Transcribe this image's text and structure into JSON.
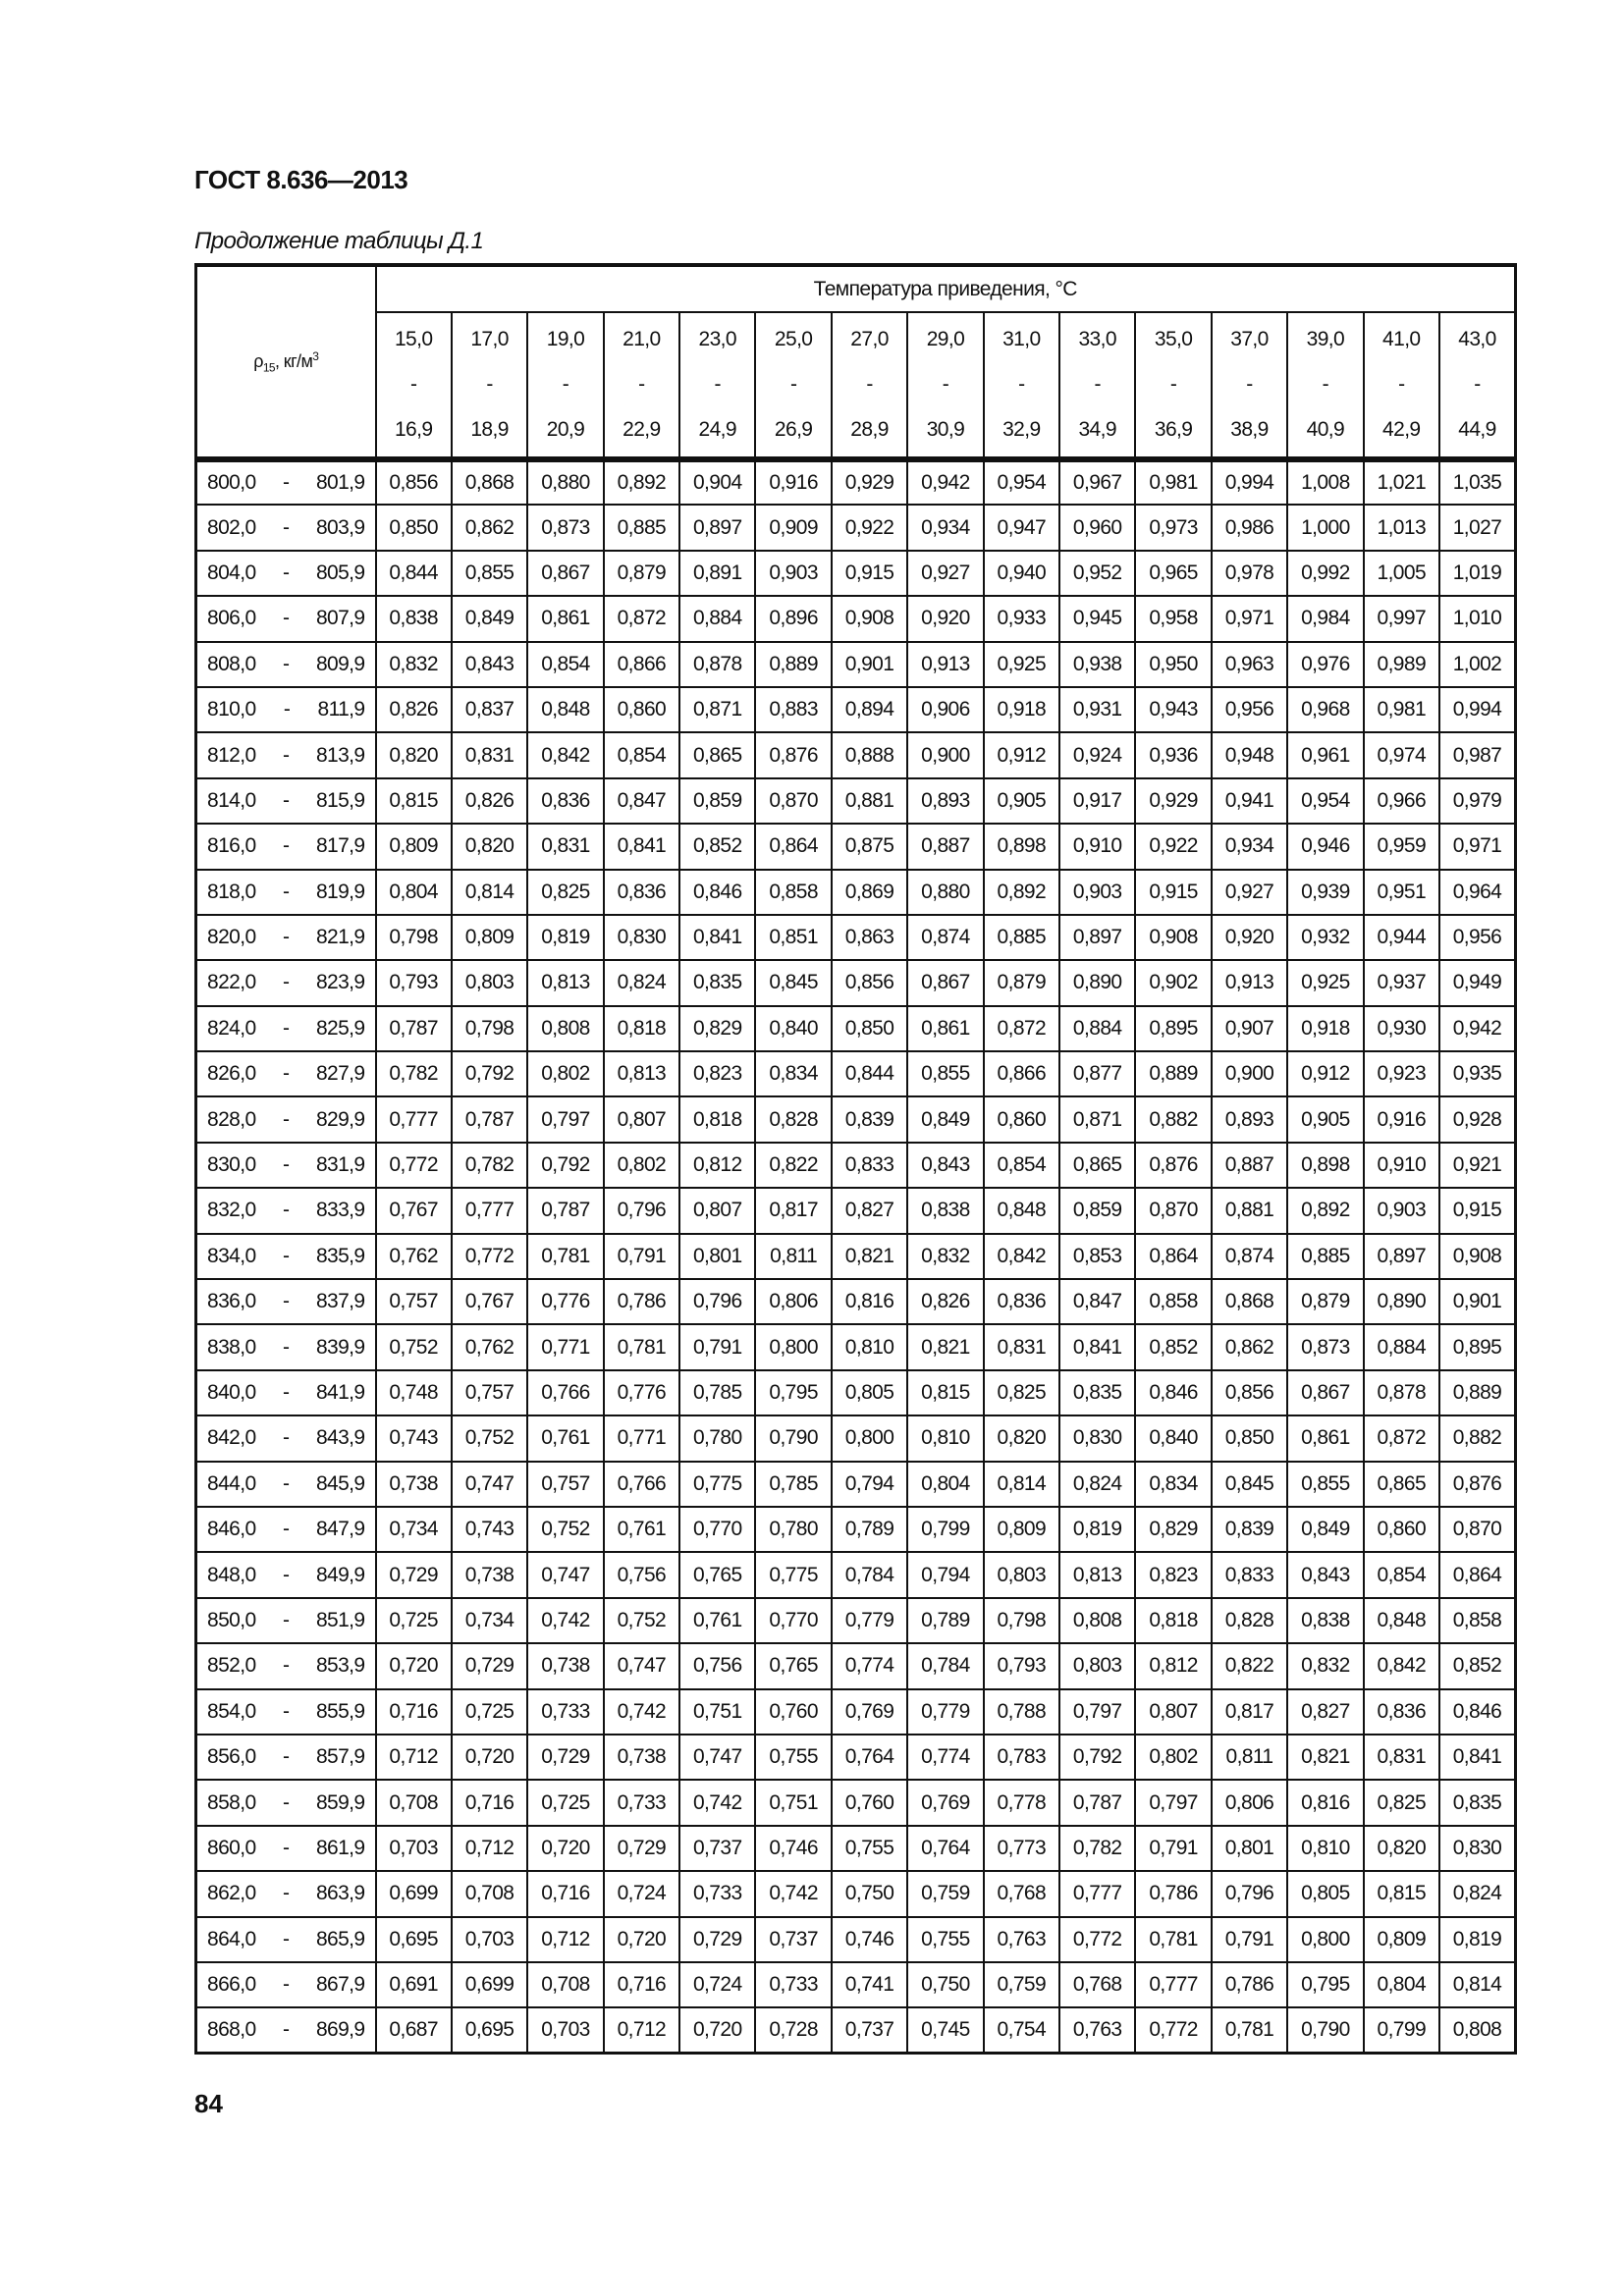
{
  "header": {
    "doc_title": "ГОСТ 8.636—2013"
  },
  "caption": "Продолжение таблицы Д.1",
  "page_number": "84",
  "table": {
    "row_header": {
      "symbol": "ρ",
      "subscript": "15",
      "unit": ", кг/м",
      "unit_sup": "3"
    },
    "group_header": "Температура приведения, °С",
    "columns": [
      {
        "from": "15,0",
        "to": "16,9"
      },
      {
        "from": "17,0",
        "to": "18,9"
      },
      {
        "from": "19,0",
        "to": "20,9"
      },
      {
        "from": "21,0",
        "to": "22,9"
      },
      {
        "from": "23,0",
        "to": "24,9"
      },
      {
        "from": "25,0",
        "to": "26,9"
      },
      {
        "from": "27,0",
        "to": "28,9"
      },
      {
        "from": "29,0",
        "to": "30,9"
      },
      {
        "from": "31,0",
        "to": "32,9"
      },
      {
        "from": "33,0",
        "to": "34,9"
      },
      {
        "from": "35,0",
        "to": "36,9"
      },
      {
        "from": "37,0",
        "to": "38,9"
      },
      {
        "from": "39,0",
        "to": "40,9"
      },
      {
        "from": "41,0",
        "to": "42,9"
      },
      {
        "from": "43,0",
        "to": "44,9"
      }
    ],
    "range_sep": "-",
    "rows": [
      {
        "from": "800,0",
        "to": "801,9",
        "values": [
          "0,856",
          "0,868",
          "0,880",
          "0,892",
          "0,904",
          "0,916",
          "0,929",
          "0,942",
          "0,954",
          "0,967",
          "0,981",
          "0,994",
          "1,008",
          "1,021",
          "1,035"
        ]
      },
      {
        "from": "802,0",
        "to": "803,9",
        "values": [
          "0,850",
          "0,862",
          "0,873",
          "0,885",
          "0,897",
          "0,909",
          "0,922",
          "0,934",
          "0,947",
          "0,960",
          "0,973",
          "0,986",
          "1,000",
          "1,013",
          "1,027"
        ]
      },
      {
        "from": "804,0",
        "to": "805,9",
        "values": [
          "0,844",
          "0,855",
          "0,867",
          "0,879",
          "0,891",
          "0,903",
          "0,915",
          "0,927",
          "0,940",
          "0,952",
          "0,965",
          "0,978",
          "0,992",
          "1,005",
          "1,019"
        ]
      },
      {
        "from": "806,0",
        "to": "807,9",
        "values": [
          "0,838",
          "0,849",
          "0,861",
          "0,872",
          "0,884",
          "0,896",
          "0,908",
          "0,920",
          "0,933",
          "0,945",
          "0,958",
          "0,971",
          "0,984",
          "0,997",
          "1,010"
        ]
      },
      {
        "from": "808,0",
        "to": "809,9",
        "values": [
          "0,832",
          "0,843",
          "0,854",
          "0,866",
          "0,878",
          "0,889",
          "0,901",
          "0,913",
          "0,925",
          "0,938",
          "0,950",
          "0,963",
          "0,976",
          "0,989",
          "1,002"
        ]
      },
      {
        "from": "810,0",
        "to": "811,9",
        "values": [
          "0,826",
          "0,837",
          "0,848",
          "0,860",
          "0,871",
          "0,883",
          "0,894",
          "0,906",
          "0,918",
          "0,931",
          "0,943",
          "0,956",
          "0,968",
          "0,981",
          "0,994"
        ]
      },
      {
        "from": "812,0",
        "to": "813,9",
        "values": [
          "0,820",
          "0,831",
          "0,842",
          "0,854",
          "0,865",
          "0,876",
          "0,888",
          "0,900",
          "0,912",
          "0,924",
          "0,936",
          "0,948",
          "0,961",
          "0,974",
          "0,987"
        ]
      },
      {
        "from": "814,0",
        "to": "815,9",
        "values": [
          "0,815",
          "0,826",
          "0,836",
          "0,847",
          "0,859",
          "0,870",
          "0,881",
          "0,893",
          "0,905",
          "0,917",
          "0,929",
          "0,941",
          "0,954",
          "0,966",
          "0,979"
        ]
      },
      {
        "from": "816,0",
        "to": "817,9",
        "values": [
          "0,809",
          "0,820",
          "0,831",
          "0,841",
          "0,852",
          "0,864",
          "0,875",
          "0,887",
          "0,898",
          "0,910",
          "0,922",
          "0,934",
          "0,946",
          "0,959",
          "0,971"
        ]
      },
      {
        "from": "818,0",
        "to": "819,9",
        "values": [
          "0,804",
          "0,814",
          "0,825",
          "0,836",
          "0,846",
          "0,858",
          "0,869",
          "0,880",
          "0,892",
          "0,903",
          "0,915",
          "0,927",
          "0,939",
          "0,951",
          "0,964"
        ]
      },
      {
        "from": "820,0",
        "to": "821,9",
        "values": [
          "0,798",
          "0,809",
          "0,819",
          "0,830",
          "0,841",
          "0,851",
          "0,863",
          "0,874",
          "0,885",
          "0,897",
          "0,908",
          "0,920",
          "0,932",
          "0,944",
          "0,956"
        ]
      },
      {
        "from": "822,0",
        "to": "823,9",
        "values": [
          "0,793",
          "0,803",
          "0,813",
          "0,824",
          "0,835",
          "0,845",
          "0,856",
          "0,867",
          "0,879",
          "0,890",
          "0,902",
          "0,913",
          "0,925",
          "0,937",
          "0,949"
        ]
      },
      {
        "from": "824,0",
        "to": "825,9",
        "values": [
          "0,787",
          "0,798",
          "0,808",
          "0,818",
          "0,829",
          "0,840",
          "0,850",
          "0,861",
          "0,872",
          "0,884",
          "0,895",
          "0,907",
          "0,918",
          "0,930",
          "0,942"
        ]
      },
      {
        "from": "826,0",
        "to": "827,9",
        "values": [
          "0,782",
          "0,792",
          "0,802",
          "0,813",
          "0,823",
          "0,834",
          "0,844",
          "0,855",
          "0,866",
          "0,877",
          "0,889",
          "0,900",
          "0,912",
          "0,923",
          "0,935"
        ]
      },
      {
        "from": "828,0",
        "to": "829,9",
        "values": [
          "0,777",
          "0,787",
          "0,797",
          "0,807",
          "0,818",
          "0,828",
          "0,839",
          "0,849",
          "0,860",
          "0,871",
          "0,882",
          "0,893",
          "0,905",
          "0,916",
          "0,928"
        ]
      },
      {
        "from": "830,0",
        "to": "831,9",
        "values": [
          "0,772",
          "0,782",
          "0,792",
          "0,802",
          "0,812",
          "0,822",
          "0,833",
          "0,843",
          "0,854",
          "0,865",
          "0,876",
          "0,887",
          "0,898",
          "0,910",
          "0,921"
        ]
      },
      {
        "from": "832,0",
        "to": "833,9",
        "values": [
          "0,767",
          "0,777",
          "0,787",
          "0,796",
          "0,807",
          "0,817",
          "0,827",
          "0,838",
          "0,848",
          "0,859",
          "0,870",
          "0,881",
          "0,892",
          "0,903",
          "0,915"
        ]
      },
      {
        "from": "834,0",
        "to": "835,9",
        "values": [
          "0,762",
          "0,772",
          "0,781",
          "0,791",
          "0,801",
          "0,811",
          "0,821",
          "0,832",
          "0,842",
          "0,853",
          "0,864",
          "0,874",
          "0,885",
          "0,897",
          "0,908"
        ]
      },
      {
        "from": "836,0",
        "to": "837,9",
        "values": [
          "0,757",
          "0,767",
          "0,776",
          "0,786",
          "0,796",
          "0,806",
          "0,816",
          "0,826",
          "0,836",
          "0,847",
          "0,858",
          "0,868",
          "0,879",
          "0,890",
          "0,901"
        ]
      },
      {
        "from": "838,0",
        "to": "839,9",
        "values": [
          "0,752",
          "0,762",
          "0,771",
          "0,781",
          "0,791",
          "0,800",
          "0,810",
          "0,821",
          "0,831",
          "0,841",
          "0,852",
          "0,862",
          "0,873",
          "0,884",
          "0,895"
        ]
      },
      {
        "from": "840,0",
        "to": "841,9",
        "values": [
          "0,748",
          "0,757",
          "0,766",
          "0,776",
          "0,785",
          "0,795",
          "0,805",
          "0,815",
          "0,825",
          "0,835",
          "0,846",
          "0,856",
          "0,867",
          "0,878",
          "0,889"
        ]
      },
      {
        "from": "842,0",
        "to": "843,9",
        "values": [
          "0,743",
          "0,752",
          "0,761",
          "0,771",
          "0,780",
          "0,790",
          "0,800",
          "0,810",
          "0,820",
          "0,830",
          "0,840",
          "0,850",
          "0,861",
          "0,872",
          "0,882"
        ]
      },
      {
        "from": "844,0",
        "to": "845,9",
        "values": [
          "0,738",
          "0,747",
          "0,757",
          "0,766",
          "0,775",
          "0,785",
          "0,794",
          "0,804",
          "0,814",
          "0,824",
          "0,834",
          "0,845",
          "0,855",
          "0,865",
          "0,876"
        ]
      },
      {
        "from": "846,0",
        "to": "847,9",
        "values": [
          "0,734",
          "0,743",
          "0,752",
          "0,761",
          "0,770",
          "0,780",
          "0,789",
          "0,799",
          "0,809",
          "0,819",
          "0,829",
          "0,839",
          "0,849",
          "0,860",
          "0,870"
        ]
      },
      {
        "from": "848,0",
        "to": "849,9",
        "values": [
          "0,729",
          "0,738",
          "0,747",
          "0,756",
          "0,765",
          "0,775",
          "0,784",
          "0,794",
          "0,803",
          "0,813",
          "0,823",
          "0,833",
          "0,843",
          "0,854",
          "0,864"
        ]
      },
      {
        "from": "850,0",
        "to": "851,9",
        "values": [
          "0,725",
          "0,734",
          "0,742",
          "0,752",
          "0,761",
          "0,770",
          "0,779",
          "0,789",
          "0,798",
          "0,808",
          "0,818",
          "0,828",
          "0,838",
          "0,848",
          "0,858"
        ]
      },
      {
        "from": "852,0",
        "to": "853,9",
        "values": [
          "0,720",
          "0,729",
          "0,738",
          "0,747",
          "0,756",
          "0,765",
          "0,774",
          "0,784",
          "0,793",
          "0,803",
          "0,812",
          "0,822",
          "0,832",
          "0,842",
          "0,852"
        ]
      },
      {
        "from": "854,0",
        "to": "855,9",
        "values": [
          "0,716",
          "0,725",
          "0,733",
          "0,742",
          "0,751",
          "0,760",
          "0,769",
          "0,779",
          "0,788",
          "0,797",
          "0,807",
          "0,817",
          "0,827",
          "0,836",
          "0,846"
        ]
      },
      {
        "from": "856,0",
        "to": "857,9",
        "values": [
          "0,712",
          "0,720",
          "0,729",
          "0,738",
          "0,747",
          "0,755",
          "0,764",
          "0,774",
          "0,783",
          "0,792",
          "0,802",
          "0,811",
          "0,821",
          "0,831",
          "0,841"
        ]
      },
      {
        "from": "858,0",
        "to": "859,9",
        "values": [
          "0,708",
          "0,716",
          "0,725",
          "0,733",
          "0,742",
          "0,751",
          "0,760",
          "0,769",
          "0,778",
          "0,787",
          "0,797",
          "0,806",
          "0,816",
          "0,825",
          "0,835"
        ]
      },
      {
        "from": "860,0",
        "to": "861,9",
        "values": [
          "0,703",
          "0,712",
          "0,720",
          "0,729",
          "0,737",
          "0,746",
          "0,755",
          "0,764",
          "0,773",
          "0,782",
          "0,791",
          "0,801",
          "0,810",
          "0,820",
          "0,830"
        ]
      },
      {
        "from": "862,0",
        "to": "863,9",
        "values": [
          "0,699",
          "0,708",
          "0,716",
          "0,724",
          "0,733",
          "0,742",
          "0,750",
          "0,759",
          "0,768",
          "0,777",
          "0,786",
          "0,796",
          "0,805",
          "0,815",
          "0,824"
        ]
      },
      {
        "from": "864,0",
        "to": "865,9",
        "values": [
          "0,695",
          "0,703",
          "0,712",
          "0,720",
          "0,729",
          "0,737",
          "0,746",
          "0,755",
          "0,763",
          "0,772",
          "0,781",
          "0,791",
          "0,800",
          "0,809",
          "0,819"
        ]
      },
      {
        "from": "866,0",
        "to": "867,9",
        "values": [
          "0,691",
          "0,699",
          "0,708",
          "0,716",
          "0,724",
          "0,733",
          "0,741",
          "0,750",
          "0,759",
          "0,768",
          "0,777",
          "0,786",
          "0,795",
          "0,804",
          "0,814"
        ]
      },
      {
        "from": "868,0",
        "to": "869,9",
        "values": [
          "0,687",
          "0,695",
          "0,703",
          "0,712",
          "0,720",
          "0,728",
          "0,737",
          "0,745",
          "0,754",
          "0,763",
          "0,772",
          "0,781",
          "0,790",
          "0,799",
          "0,808"
        ]
      }
    ]
  }
}
